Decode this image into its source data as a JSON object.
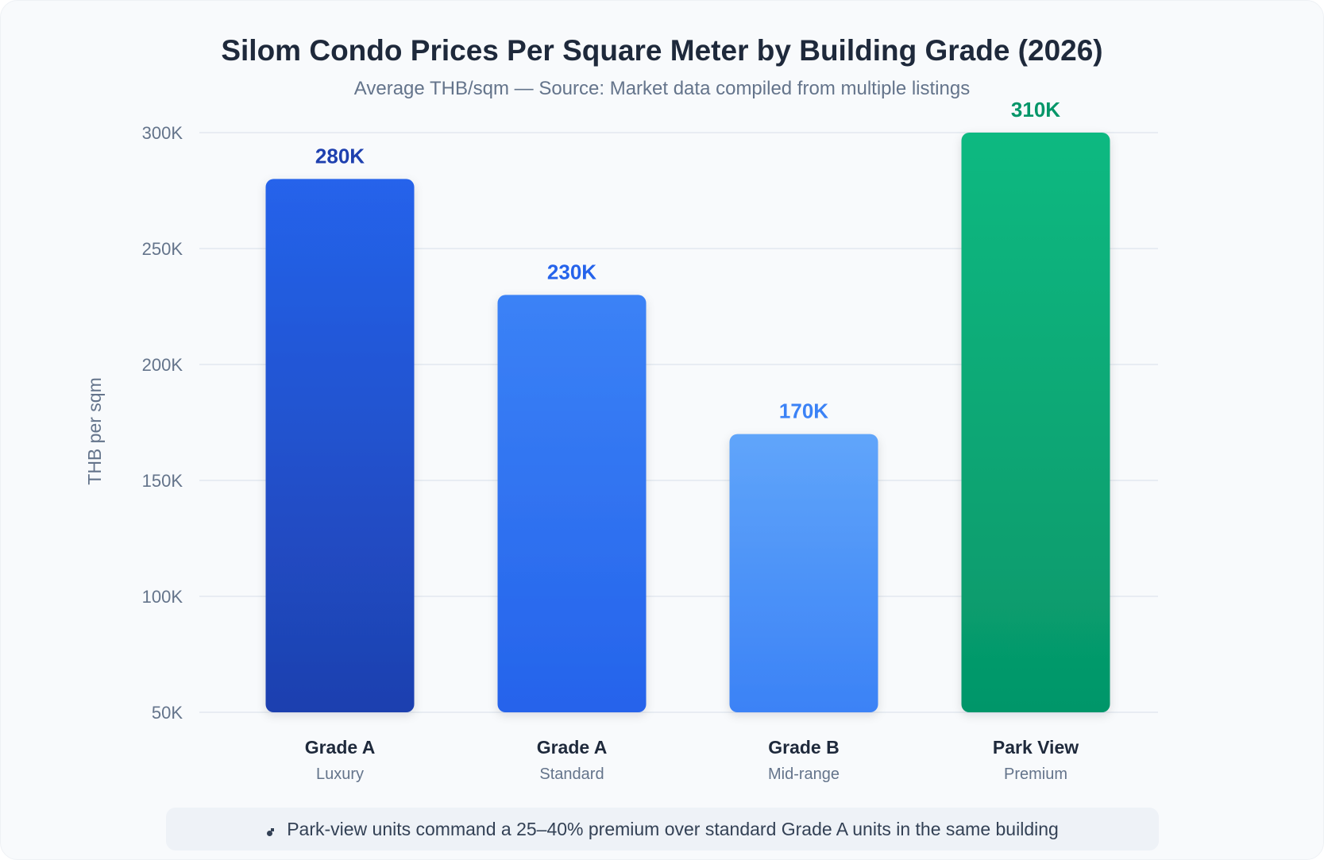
{
  "chart_data": {
    "type": "bar",
    "title": "Silom Condo Prices Per Square Meter by Building Grade (2026)",
    "subtitle": "Average THB/sqm — Source: Market data compiled from multiple listings",
    "ylabel": "THB per sqm",
    "ylim": [
      50000,
      300000
    ],
    "yticks": [
      50000,
      100000,
      150000,
      200000,
      250000,
      300000
    ],
    "ytick_labels": [
      "50K",
      "100K",
      "150K",
      "200K",
      "250K",
      "300K"
    ],
    "grid": true,
    "categories": [
      {
        "label": "Grade A",
        "sublabel": "Luxury"
      },
      {
        "label": "Grade A",
        "sublabel": "Standard"
      },
      {
        "label": "Grade B",
        "sublabel": "Mid-range"
      },
      {
        "label": "Park View",
        "sublabel": "Premium"
      }
    ],
    "values": [
      280000,
      230000,
      170000,
      310000
    ],
    "value_labels": [
      "280K",
      "230K",
      "170K",
      "310K"
    ],
    "colors": [
      {
        "top": "#2563eb",
        "bottom": "#1e40af",
        "label": "#1e40af"
      },
      {
        "top": "#3b82f6",
        "bottom": "#2563eb",
        "label": "#2563eb"
      },
      {
        "top": "#60a5fa",
        "bottom": "#3b82f6",
        "label": "#3b82f6"
      },
      {
        "top": "#10b981",
        "bottom": "#059669",
        "label": "#059669"
      }
    ]
  },
  "note": {
    "icon": "info-dot-icon",
    "text": "Park-view units command a 25–40% premium over standard Grade A units in the same building"
  }
}
